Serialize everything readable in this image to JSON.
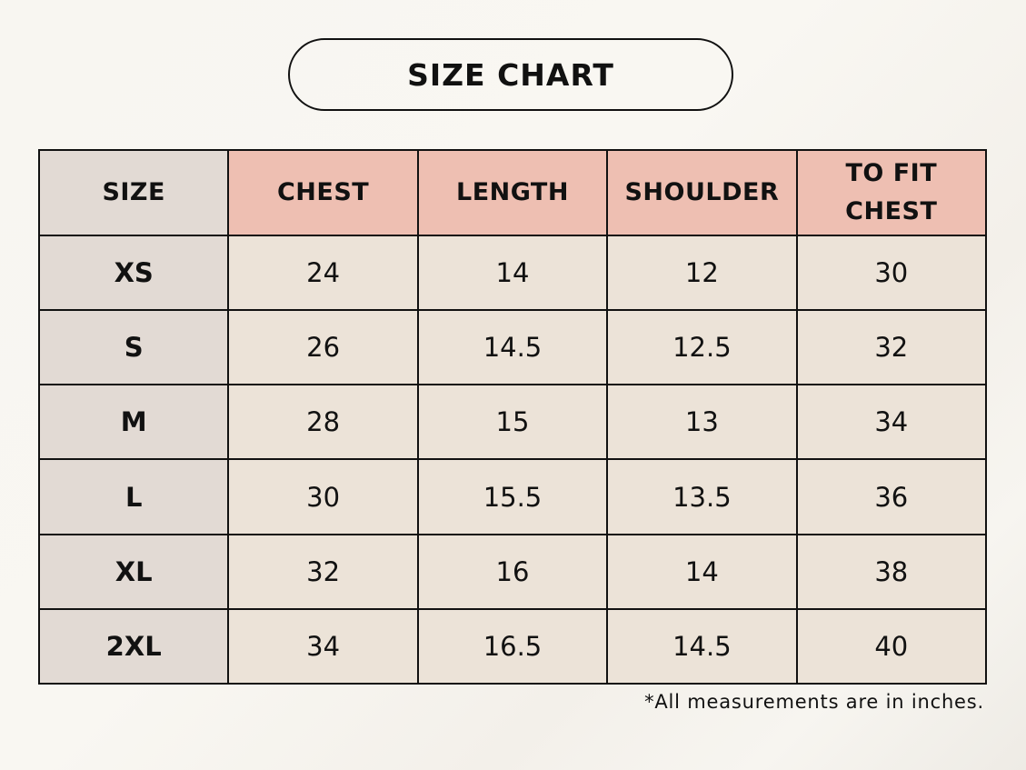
{
  "title": "SIZE CHART",
  "table": {
    "headers": [
      "SIZE",
      "CHEST",
      "LENGTH",
      "SHOULDER",
      "TO FIT CHEST"
    ],
    "rows": [
      {
        "size": "XS",
        "chest": "24",
        "length": "14",
        "shoulder": "12",
        "to_fit_chest": "30"
      },
      {
        "size": "S",
        "chest": "26",
        "length": "14.5",
        "shoulder": "12.5",
        "to_fit_chest": "32"
      },
      {
        "size": "M",
        "chest": "28",
        "length": "15",
        "shoulder": "13",
        "to_fit_chest": "34"
      },
      {
        "size": "L",
        "chest": "30",
        "length": "15.5",
        "shoulder": "13.5",
        "to_fit_chest": "36"
      },
      {
        "size": "XL",
        "chest": "32",
        "length": "16",
        "shoulder": "14",
        "to_fit_chest": "38"
      },
      {
        "size": "2XL",
        "chest": "34",
        "length": "16.5",
        "shoulder": "14.5",
        "to_fit_chest": "40"
      }
    ]
  },
  "footnote": "*All measurements are in inches.",
  "colors": {
    "header_accent": "#eebfb2",
    "size_column": "#e2dad4",
    "cell_background": "#ece3d8",
    "border": "#111111"
  }
}
